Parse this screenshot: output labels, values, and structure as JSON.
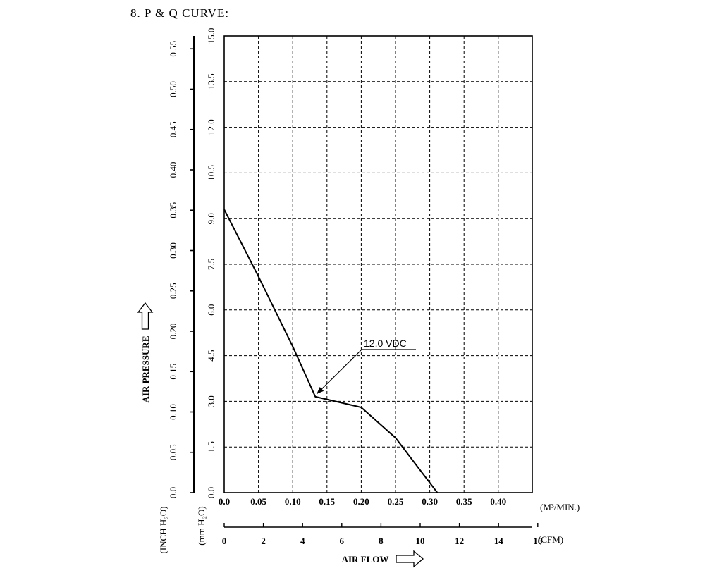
{
  "page": {
    "section_title": "8. P & Q CURVE:"
  },
  "chart_data": {
    "type": "line",
    "title": "8. P & Q CURVE:",
    "xlabel": "AIR FLOW",
    "ylabel": "AIR PRESSURE",
    "x_unit_primary": "(M³/MIN.)",
    "x_unit_secondary": "(CFM)",
    "y_unit_inner": "(mm H₂O)",
    "y_unit_outer": "(INCH H₂O)",
    "xlim": [
      0,
      0.45
    ],
    "ylim": [
      0,
      15
    ],
    "x_ticks": [
      "0.0",
      "0.05",
      "0.10",
      "0.15",
      "0.20",
      "0.25",
      "0.30",
      "0.35",
      "0.40"
    ],
    "x_tick_values": [
      0,
      0.05,
      0.1,
      0.15,
      0.2,
      0.25,
      0.3,
      0.35,
      0.4
    ],
    "cfm_ticks": [
      "0",
      "2",
      "4",
      "6",
      "8",
      "10",
      "12",
      "14",
      "16"
    ],
    "cfm_tick_values": [
      0,
      2,
      4,
      6,
      8,
      10,
      12,
      14,
      16
    ],
    "y_ticks_mm": [
      "0.0",
      "1.5",
      "3.0",
      "4.5",
      "6.0",
      "7.5",
      "9.0",
      "10.5",
      "12.0",
      "13.5",
      "15.0"
    ],
    "y_tick_values_mm": [
      0,
      1.5,
      3.0,
      4.5,
      6.0,
      7.5,
      9.0,
      10.5,
      12.0,
      13.5,
      15.0
    ],
    "y_ticks_inch": [
      "0.0",
      "0.05",
      "0.10",
      "0.15",
      "0.20",
      "0.25",
      "0.30",
      "0.35",
      "0.40",
      "0.45",
      "0.50",
      "0.55"
    ],
    "y_tick_values_inch": [
      0,
      0.05,
      0.1,
      0.15,
      0.2,
      0.25,
      0.3,
      0.35,
      0.4,
      0.45,
      0.5,
      0.55
    ],
    "grid": true,
    "series": [
      {
        "name": "12.0 VDC",
        "x": [
          0.0,
          0.05,
          0.1,
          0.133,
          0.2,
          0.25,
          0.311
        ],
        "y": [
          9.3,
          7.1,
          4.8,
          3.15,
          2.8,
          1.8,
          0.0
        ]
      }
    ],
    "annotation": {
      "text": "12.0 VDC",
      "target": [
        0.133,
        3.15
      ]
    }
  }
}
